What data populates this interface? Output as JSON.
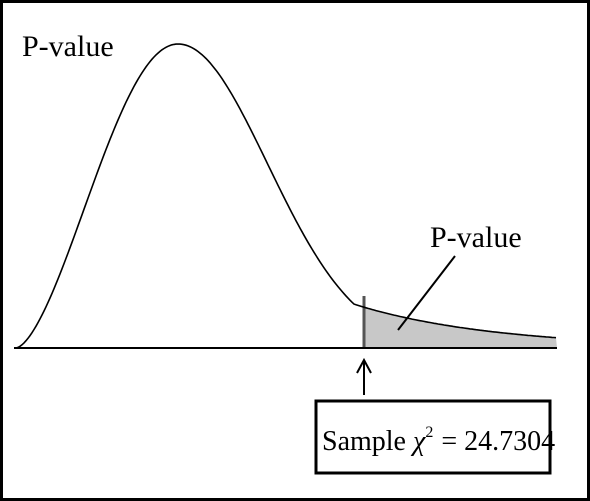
{
  "diagram": {
    "title": "P-value",
    "tail_label": "P-value",
    "stat_label_prefix": "Sample ",
    "stat_symbol": "χ",
    "stat_exponent": "2",
    "stat_value": "= 24.7304",
    "colors": {
      "curve": "#000000",
      "shade": "#c8c8c8",
      "axis": "#000000",
      "background": "#ffffff"
    }
  }
}
